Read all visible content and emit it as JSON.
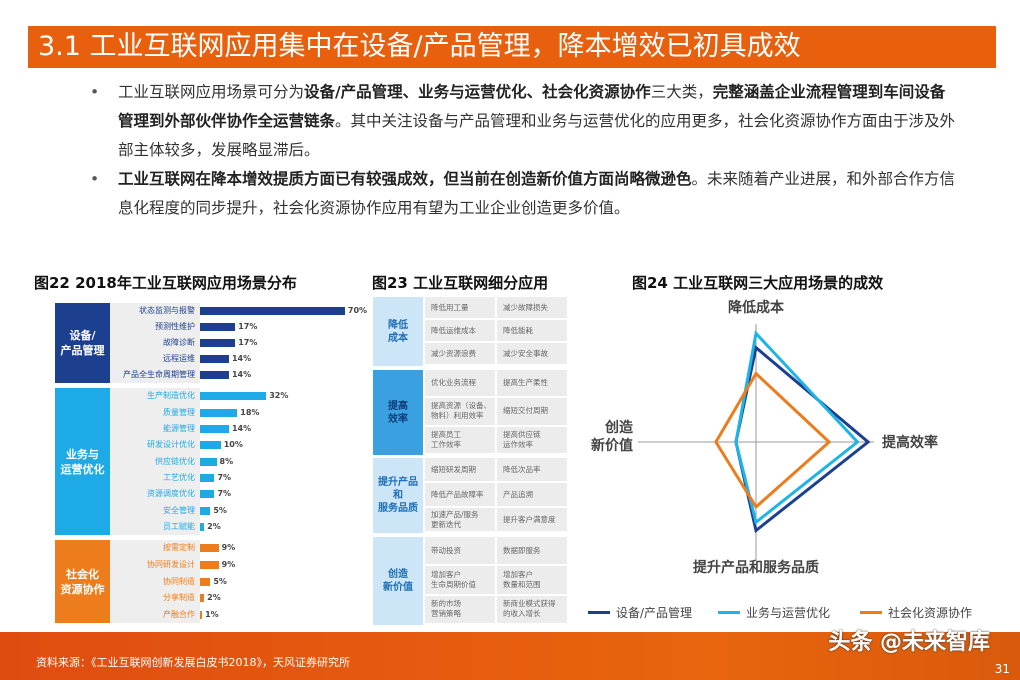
{
  "title": "3.1 工业互联网应用集中在设备/产品管理，降本增效已初具成效",
  "bullets": [
    {
      "parts": [
        {
          "t": "工业互联网应用场景可分为",
          "b": false
        },
        {
          "t": "设备/产品管理、业务与运营优化、社会化资源协作",
          "b": true
        },
        {
          "t": "三大类，",
          "b": false
        },
        {
          "t": "完整涵盖企业流程管理到车间设备管理到外部伙伴协作全运营链条",
          "b": true
        },
        {
          "t": "。其中关注设备与产品管理和业务与运营优化的应用更多，社会化资源协作方面由于涉及外部主体较多，发展略显滞后。",
          "b": false
        }
      ]
    },
    {
      "parts": [
        {
          "t": "工业互联网在降本增效提质方面已有较强成效，但当前在创造新价值方面尚略微逊色",
          "b": true
        },
        {
          "t": "。未来随着产业进展，和外部合作方信息化程度的同步提升，社会化资源协作应用有望为工业企业创造更多价值。",
          "b": false
        }
      ]
    }
  ],
  "captions": {
    "fig22": "图22 2018年工业互联网应用场景分布",
    "fig23": "图23 工业互联网细分应用",
    "fig24": "图24 工业互联网三大应用场景的成效"
  },
  "chart_data": [
    {
      "type": "bar",
      "orientation": "horizontal",
      "unit": "%",
      "groups": [
        {
          "name": "设备/产品管理",
          "color": "#1d3f8f",
          "categories": [
            "状态监测与报警",
            "预测性维护",
            "故障诊断",
            "远程运维",
            "产品全生命周期管理"
          ],
          "values": [
            70,
            17,
            17,
            14,
            14
          ]
        },
        {
          "name": "业务与运营优化",
          "color": "#1eaae6",
          "categories": [
            "生产制造优化",
            "质量管理",
            "能源管理",
            "研发设计优化",
            "供应链优化",
            "工艺优化",
            "资源调度优化",
            "安全管理",
            "员工赋能"
          ],
          "values": [
            32,
            18,
            14,
            10,
            8,
            7,
            7,
            5,
            2
          ]
        },
        {
          "name": "社会化资源协作",
          "color": "#ed7d1c",
          "categories": [
            "按需定制",
            "协同研发设计",
            "协同制造",
            "分享制造",
            "产融合作"
          ],
          "values": [
            9,
            9,
            5,
            2,
            1
          ]
        }
      ]
    },
    {
      "type": "radar",
      "axes": [
        "降低成本",
        "提高效率",
        "提升产品和服务品质",
        "创造\n新价值"
      ],
      "legend": "bottom",
      "series": [
        {
          "name": "设备/产品管理",
          "color": "#1d3f8f",
          "values": [
            0.8,
            0.95,
            0.75,
            0.17
          ]
        },
        {
          "name": "业务与运营优化",
          "color": "#1eb4e6",
          "values": [
            0.92,
            0.86,
            0.68,
            0.17
          ]
        },
        {
          "name": "社会化资源协作",
          "color": "#ed7d1c",
          "values": [
            0.58,
            0.62,
            0.55,
            0.34
          ]
        }
      ]
    }
  ],
  "table": [
    {
      "group": "降低\n成本",
      "bg": "#cde6f7",
      "rows": [
        [
          "降低用工量",
          "减少故障损失"
        ],
        [
          "降低运维成本",
          "降低能耗"
        ],
        [
          "减少资源浪费",
          "减少安全事故"
        ]
      ]
    },
    {
      "group": "提高\n效率",
      "bg": "#3aa0e0",
      "rows": [
        [
          "优化业务流程",
          "提高生产柔性"
        ],
        [
          "提高资源（设备、\n物料）利用效率",
          "缩短交付周期"
        ],
        [
          "提高员工\n工作效率",
          "提高供应链\n运作效率"
        ]
      ]
    },
    {
      "group": "提升产品\n和\n服务品质",
      "bg": "#cde6f7",
      "rows": [
        [
          "缩短研发周期",
          "降低次品率"
        ],
        [
          "降低产品故障率",
          "产品追溯"
        ],
        [
          "加速产品/服务\n更新迭代",
          "提升客户满意度"
        ]
      ]
    },
    {
      "group": "创造\n新价值",
      "bg": "#cde6f7",
      "rows": [
        [
          "带动投资",
          "数据即服务"
        ],
        [
          "增加客户\n生命周期价值",
          "增加客户\n数量和范围"
        ],
        [
          "新的市场\n营销策略",
          "新商业模式获得\n的收入增长"
        ]
      ]
    }
  ],
  "footer": {
    "source": "资料来源：《工业互联网创新发展白皮书2018》，天风证券研究所",
    "watermark": "头条 @未来智库",
    "page": "31"
  }
}
